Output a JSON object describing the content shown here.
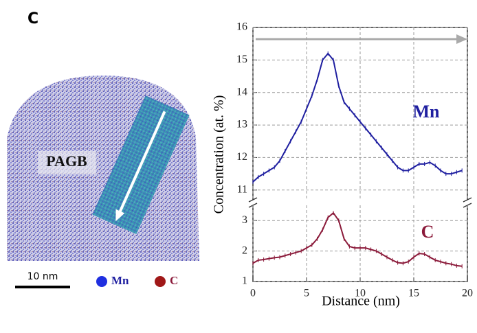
{
  "panel_label": "C",
  "image": {
    "label": "PAGB",
    "scale_bar": "10 nm"
  },
  "x_label": "Distance (nm)",
  "y_label": "Concentration (at. %)",
  "chart_data": [
    {
      "type": "line",
      "grid": true,
      "xlim": [
        0,
        20
      ],
      "xticks": [
        0,
        5,
        10,
        15,
        20
      ],
      "ylim": [
        10.7,
        16
      ],
      "yticks": [
        11,
        12,
        13,
        14,
        15,
        16
      ],
      "x": [
        0,
        0.5,
        1,
        1.5,
        2,
        2.5,
        3,
        3.5,
        4,
        4.5,
        5,
        5.5,
        6,
        6.5,
        7,
        7.5,
        8,
        8.5,
        9,
        9.5,
        10,
        10.5,
        11,
        11.5,
        12,
        12.5,
        13,
        13.5,
        14,
        14.5,
        15,
        15.5,
        16,
        16.5,
        17,
        17.5,
        18,
        18.5,
        19,
        19.5
      ],
      "series": [
        {
          "name": "Mn",
          "color": "#1f1fa0",
          "values": [
            11.25,
            11.4,
            11.5,
            11.6,
            11.7,
            11.9,
            12.2,
            12.5,
            12.8,
            13.1,
            13.5,
            13.9,
            14.4,
            15.0,
            15.2,
            15.0,
            14.2,
            13.7,
            13.5,
            13.3,
            13.1,
            12.9,
            12.7,
            12.5,
            12.3,
            12.1,
            11.9,
            11.7,
            11.6,
            11.6,
            11.7,
            11.8,
            11.8,
            11.85,
            11.75,
            11.6,
            11.5,
            11.5,
            11.55,
            11.6
          ]
        }
      ]
    },
    {
      "type": "line",
      "grid": true,
      "xlim": [
        0,
        20
      ],
      "xticks": [
        0,
        5,
        10,
        15,
        20
      ],
      "ylim": [
        1,
        3.5
      ],
      "yticks": [
        1,
        2,
        3
      ],
      "x": [
        0,
        0.5,
        1,
        1.5,
        2,
        2.5,
        3,
        3.5,
        4,
        4.5,
        5,
        5.5,
        6,
        6.5,
        7,
        7.5,
        8,
        8.5,
        9,
        9.5,
        10,
        10.5,
        11,
        11.5,
        12,
        12.5,
        13,
        13.5,
        14,
        14.5,
        15,
        15.5,
        16,
        16.5,
        17,
        17.5,
        18,
        18.5,
        19,
        19.5
      ],
      "series": [
        {
          "name": "C",
          "color": "#8b1a3a",
          "values": [
            1.6,
            1.7,
            1.72,
            1.75,
            1.78,
            1.8,
            1.85,
            1.9,
            1.95,
            2.0,
            2.1,
            2.2,
            2.4,
            2.7,
            3.1,
            3.25,
            3.0,
            2.4,
            2.15,
            2.1,
            2.1,
            2.1,
            2.05,
            2.0,
            1.9,
            1.8,
            1.7,
            1.62,
            1.6,
            1.65,
            1.8,
            1.92,
            1.9,
            1.8,
            1.7,
            1.65,
            1.6,
            1.57,
            1.52,
            1.5
          ]
        }
      ]
    }
  ]
}
